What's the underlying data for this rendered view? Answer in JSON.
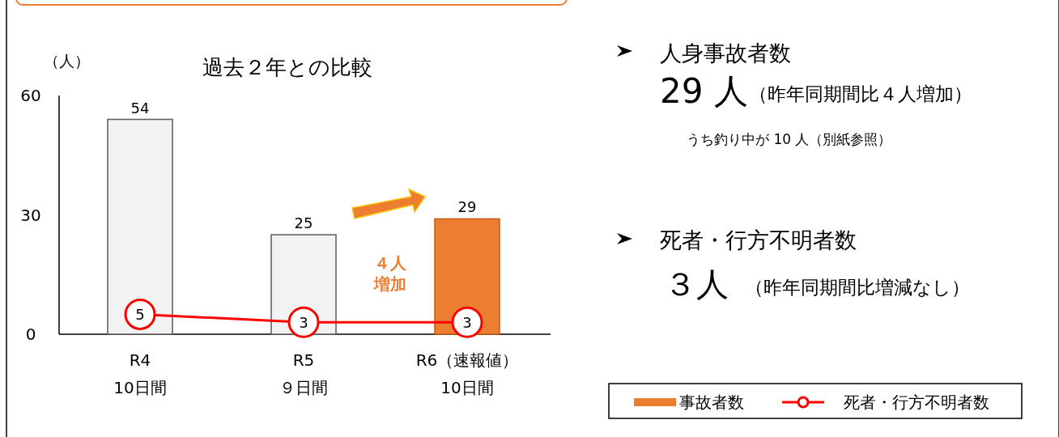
{
  "chart_data": {
    "type": "bar",
    "title": "過去２年との比較",
    "ylabel": "（人）",
    "categories": [
      "R4\n10日間",
      "R5\n９日間",
      "R6（速報値）\n10日間"
    ],
    "series": [
      {
        "name": "事故者数",
        "colors": [
          "#f2f2f2",
          "#f2f2f2",
          "#ed7d31"
        ],
        "color": "#ed7d31",
        "values": [
          54,
          25,
          29
        ]
      },
      {
        "name": "死者・行方不明者数",
        "type": "line",
        "color": "#ff0000",
        "marker": "circle",
        "values": [
          5,
          3,
          3
        ]
      }
    ],
    "ylim": [
      0,
      60
    ],
    "yticks": [
      0,
      30,
      60
    ],
    "data_labels": true,
    "legend": "bottom right",
    "grid": false,
    "annotations": [
      "４人",
      "増加",
      "人身事故者数",
      "29 人",
      "（昨年同期間比４人増加）",
      "うち釣り中が 10 人（別紙参照）",
      "死者・行方不明者数",
      "３人",
      "（昨年同期間比増減なし）"
    ]
  }
}
